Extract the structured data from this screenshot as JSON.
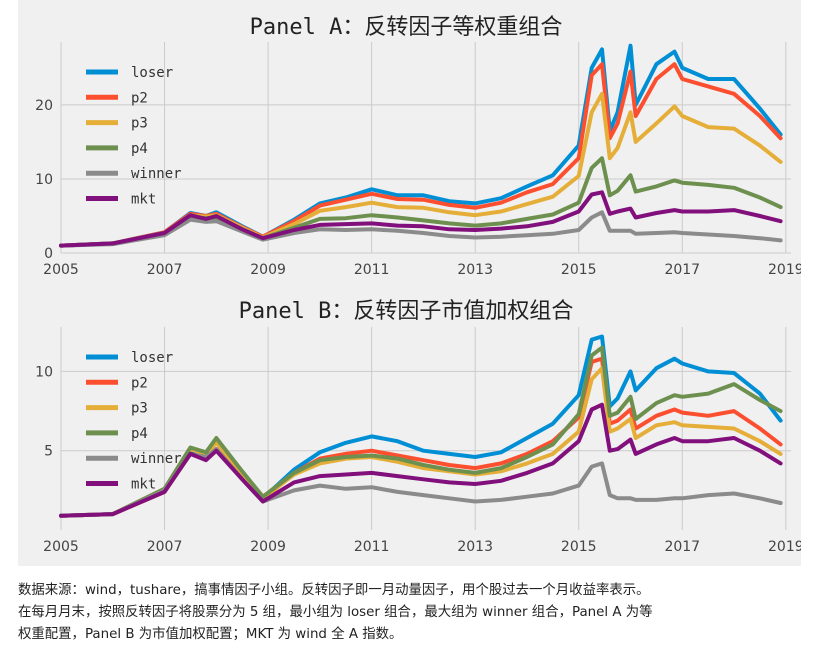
{
  "colors": {
    "loser": "#008fd5",
    "p2": "#fc4f30",
    "p3": "#e5ae38",
    "p4": "#6d904f",
    "winner": "#8b8b8b",
    "mkt": "#810f7c",
    "background": "#f0f0f0",
    "grid": "#cbcbcb"
  },
  "chart_data": [
    {
      "type": "line",
      "title": "Panel A：反转因子等权重组合",
      "xlabel": "",
      "ylabel": "",
      "xlim": [
        2005.0,
        2019.1
      ],
      "ylim": [
        0,
        28.5
      ],
      "xticks": [
        "2005",
        "2007",
        "2009",
        "2011",
        "2013",
        "2015",
        "2017",
        "2019"
      ],
      "yticks": [
        "0",
        "10",
        "20"
      ],
      "grid": true,
      "legend": "top-left",
      "x": [
        2005.0,
        2006.0,
        2007.0,
        2007.5,
        2007.8,
        2008.0,
        2008.5,
        2008.9,
        2009.5,
        2010.0,
        2010.5,
        2011.0,
        2011.5,
        2012.0,
        2012.5,
        2013.0,
        2013.5,
        2014.0,
        2014.5,
        2015.0,
        2015.25,
        2015.45,
        2015.6,
        2015.75,
        2016.0,
        2016.1,
        2016.5,
        2016.85,
        2017.0,
        2017.5,
        2018.0,
        2018.5,
        2018.9
      ],
      "series": [
        {
          "name": "loser",
          "color_key": "loser",
          "values": [
            1.0,
            1.3,
            2.8,
            5.4,
            5.0,
            5.5,
            3.6,
            2.2,
            4.5,
            6.7,
            7.5,
            8.6,
            7.8,
            7.8,
            7.0,
            6.7,
            7.4,
            9.0,
            10.5,
            14.5,
            25.0,
            27.5,
            16.5,
            19.0,
            28.0,
            20.0,
            25.5,
            27.2,
            25.0,
            23.5,
            23.5,
            19.5,
            16.0
          ]
        },
        {
          "name": "p2",
          "color_key": "p2",
          "values": [
            1.0,
            1.3,
            2.8,
            5.3,
            5.0,
            5.3,
            3.5,
            2.2,
            4.3,
            6.4,
            7.2,
            8.0,
            7.3,
            7.2,
            6.5,
            6.1,
            6.8,
            8.2,
            9.3,
            12.8,
            24.0,
            25.5,
            15.5,
            17.5,
            24.5,
            18.5,
            23.5,
            25.5,
            23.5,
            22.5,
            21.5,
            18.5,
            15.5
          ]
        },
        {
          "name": "p3",
          "color_key": "p3",
          "values": [
            1.0,
            1.3,
            2.7,
            5.1,
            4.9,
            5.1,
            3.4,
            2.1,
            3.9,
            5.7,
            6.2,
            6.8,
            6.2,
            6.1,
            5.5,
            5.1,
            5.6,
            6.6,
            7.6,
            10.4,
            19.0,
            21.5,
            12.8,
            14.2,
            19.0,
            15.0,
            17.5,
            19.8,
            18.5,
            17.0,
            16.8,
            14.5,
            12.3
          ]
        },
        {
          "name": "p4",
          "color_key": "p4",
          "values": [
            1.0,
            1.3,
            2.6,
            4.9,
            4.7,
            4.8,
            3.2,
            2.0,
            3.4,
            4.6,
            4.7,
            5.1,
            4.8,
            4.4,
            4.0,
            3.7,
            4.0,
            4.6,
            5.2,
            6.8,
            11.5,
            12.8,
            7.8,
            8.4,
            10.5,
            8.3,
            9.0,
            9.8,
            9.5,
            9.2,
            8.8,
            7.5,
            6.2
          ]
        },
        {
          "name": "winner",
          "color_key": "winner",
          "values": [
            1.0,
            1.2,
            2.4,
            4.5,
            4.2,
            4.3,
            2.9,
            1.8,
            2.7,
            3.2,
            3.1,
            3.2,
            3.0,
            2.7,
            2.3,
            2.1,
            2.2,
            2.4,
            2.6,
            3.1,
            4.8,
            5.5,
            3.0,
            3.0,
            3.0,
            2.6,
            2.7,
            2.8,
            2.7,
            2.5,
            2.3,
            2.0,
            1.7
          ]
        },
        {
          "name": "mkt",
          "color_key": "mkt",
          "values": [
            1.0,
            1.3,
            2.7,
            5.1,
            4.6,
            5.0,
            3.2,
            2.0,
            3.1,
            3.8,
            3.9,
            4.0,
            3.7,
            3.6,
            3.2,
            3.1,
            3.3,
            3.6,
            4.2,
            5.6,
            7.9,
            8.2,
            5.3,
            5.6,
            6.0,
            4.8,
            5.4,
            5.8,
            5.6,
            5.6,
            5.8,
            5.0,
            4.3
          ]
        }
      ]
    },
    {
      "type": "line",
      "title": "Panel B：反转因子市值加权组合",
      "xlabel": "",
      "ylabel": "",
      "xlim": [
        2005.0,
        2019.1
      ],
      "ylim": [
        0,
        12.8
      ],
      "xticks": [
        "2005",
        "2007",
        "2009",
        "2011",
        "2013",
        "2015",
        "2017",
        "2019"
      ],
      "yticks": [
        "5",
        "10"
      ],
      "grid": true,
      "legend": "top-left",
      "x": [
        2005.0,
        2006.0,
        2007.0,
        2007.5,
        2007.8,
        2008.0,
        2008.5,
        2008.9,
        2009.5,
        2010.0,
        2010.5,
        2011.0,
        2011.5,
        2012.0,
        2012.5,
        2013.0,
        2013.5,
        2014.0,
        2014.5,
        2015.0,
        2015.25,
        2015.45,
        2015.6,
        2015.75,
        2016.0,
        2016.1,
        2016.5,
        2016.85,
        2017.0,
        2017.5,
        2018.0,
        2018.5,
        2018.9
      ],
      "series": [
        {
          "name": "loser",
          "color_key": "loser",
          "values": [
            0.9,
            1.0,
            2.5,
            4.9,
            4.5,
            5.1,
            3.5,
            2.0,
            3.8,
            4.9,
            5.5,
            5.9,
            5.6,
            5.0,
            4.8,
            4.6,
            4.9,
            5.8,
            6.7,
            8.5,
            12.0,
            12.2,
            7.8,
            8.3,
            10.0,
            8.8,
            10.2,
            10.8,
            10.5,
            10.0,
            9.9,
            8.6,
            6.9
          ]
        },
        {
          "name": "p2",
          "color_key": "p2",
          "values": [
            0.9,
            1.0,
            2.4,
            4.8,
            4.5,
            5.1,
            3.4,
            1.9,
            3.6,
            4.5,
            4.8,
            5.0,
            4.7,
            4.4,
            4.1,
            3.9,
            4.2,
            4.8,
            5.6,
            7.1,
            10.6,
            10.8,
            6.7,
            6.9,
            7.6,
            6.4,
            7.2,
            7.6,
            7.4,
            7.2,
            7.5,
            6.4,
            5.4
          ]
        },
        {
          "name": "p3",
          "color_key": "p3",
          "values": [
            0.9,
            1.0,
            2.6,
            5.1,
            4.8,
            5.5,
            3.6,
            2.0,
            3.5,
            4.2,
            4.5,
            4.6,
            4.3,
            3.9,
            3.7,
            3.5,
            3.7,
            4.2,
            4.8,
            6.2,
            9.5,
            10.2,
            6.2,
            6.4,
            7.0,
            5.8,
            6.6,
            6.8,
            6.6,
            6.5,
            6.4,
            5.6,
            4.8
          ]
        },
        {
          "name": "p4",
          "color_key": "p4",
          "values": [
            0.9,
            1.0,
            2.6,
            5.2,
            4.9,
            5.8,
            3.7,
            2.1,
            3.6,
            4.4,
            4.6,
            4.7,
            4.5,
            4.1,
            3.8,
            3.6,
            3.9,
            4.6,
            5.4,
            7.3,
            11.0,
            11.5,
            7.2,
            7.4,
            8.4,
            7.0,
            8.0,
            8.5,
            8.4,
            8.6,
            9.2,
            8.2,
            7.5
          ]
        },
        {
          "name": "winner",
          "color_key": "winner",
          "values": [
            0.9,
            1.0,
            2.5,
            4.8,
            4.6,
            5.1,
            3.2,
            1.8,
            2.5,
            2.8,
            2.6,
            2.7,
            2.4,
            2.2,
            2.0,
            1.8,
            1.9,
            2.1,
            2.3,
            2.8,
            4.0,
            4.2,
            2.2,
            2.0,
            2.0,
            1.9,
            1.9,
            2.0,
            2.0,
            2.2,
            2.3,
            2.0,
            1.7
          ]
        },
        {
          "name": "mkt",
          "color_key": "mkt",
          "values": [
            0.9,
            1.0,
            2.4,
            4.8,
            4.4,
            5.0,
            3.2,
            1.8,
            3.0,
            3.4,
            3.5,
            3.6,
            3.4,
            3.2,
            3.0,
            2.9,
            3.1,
            3.6,
            4.2,
            5.6,
            7.6,
            7.9,
            5.0,
            5.1,
            5.7,
            4.8,
            5.4,
            5.8,
            5.6,
            5.6,
            5.8,
            5.0,
            4.2
          ]
        }
      ]
    }
  ],
  "caption": {
    "lines": [
      "数据来源：wind，tushare，搞事情因子小组。反转因子即一月动量因子，用个股过去一个月收益率表示。",
      "在每月月末，按照反转因子将股票分为 5 组，最小组为 loser 组合，最大组为 winner 组合，Panel A 为等",
      "权重配置，Panel B 为市值加权配置；MKT 为 wind 全 A 指数。"
    ]
  }
}
